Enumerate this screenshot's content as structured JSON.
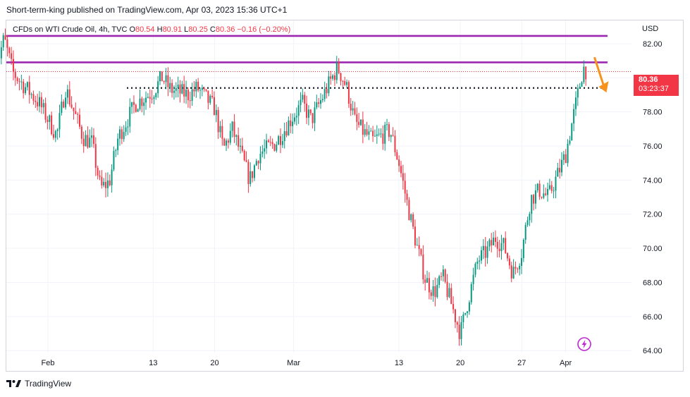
{
  "header": {
    "publish_line": "Short-term-king published on TradingView.com, Apr 03, 2023 15:36 UTC+1"
  },
  "legend": {
    "symbol": "CFDs on WTI Crude Oil, 4h, TVC",
    "o_label": "O",
    "o_value": "80.54",
    "h_label": "H",
    "h_value": "80.91",
    "l_label": "L",
    "l_value": "80.25",
    "c_label": "C",
    "c_value": "80.36",
    "change": "−0.16 (−0.20%)"
  },
  "currency": "USD",
  "price_badge": {
    "price": "80.36",
    "countdown": "03:23:37"
  },
  "brand": "TradingView",
  "colors": {
    "up": "#089981",
    "down": "#f23645",
    "resistance": "#9c27b0",
    "arrow": "#f7931a"
  },
  "chart_data": {
    "type": "candlestick",
    "title": "CFDs on WTI Crude Oil, 4h, TVC",
    "ylabel": "USD",
    "ylim": [
      63.1,
      83.4
    ],
    "yticks": [
      "64.00",
      "66.00",
      "68.00",
      "70.00",
      "72.00",
      "74.00",
      "76.00",
      "78.00",
      "80.00",
      "82.00"
    ],
    "xticks": [
      "Feb",
      "13",
      "20",
      "Mar",
      "13",
      "20",
      "27",
      "Apr"
    ],
    "last_price": 80.36,
    "horizontal_lines": [
      {
        "style": "solid",
        "color": "#9c27b0",
        "price": 82.45,
        "x_from": "Jan 26",
        "x_to": "Apr 05"
      },
      {
        "style": "solid",
        "color": "#9c27b0",
        "price": 80.9,
        "x_from": "Jan 26",
        "x_to": "Apr 05"
      },
      {
        "style": "dotted",
        "color": "#131722",
        "price": 79.4,
        "x_from": "Feb 10",
        "x_to": "Apr 05"
      }
    ],
    "annotations": [
      {
        "type": "arrow",
        "color": "#f7931a",
        "direction": "down",
        "near": "Apr 03",
        "from_price": 81.2,
        "to_price": 79.3
      }
    ],
    "series": [
      {
        "type": "candles",
        "anchors": [
          [
            "Jan 26",
            80.5
          ],
          [
            "Jan 27",
            82.3
          ],
          [
            "Jan 28",
            80.3
          ],
          [
            "Jan 31",
            78.5
          ],
          [
            "Feb 02",
            76.6
          ],
          [
            "Feb 03",
            79.4
          ],
          [
            "Feb 05",
            76.5
          ],
          [
            "Feb 06",
            76.2
          ],
          [
            "Feb 07",
            73.5
          ],
          [
            "Feb 08",
            73.9
          ],
          [
            "Feb 09",
            76.5
          ],
          [
            "Feb 11",
            78.5
          ],
          [
            "Feb 13",
            79.2
          ],
          [
            "Feb 14",
            80.0
          ],
          [
            "Feb 15",
            79.3
          ],
          [
            "Feb 17",
            79.0
          ],
          [
            "Feb 18",
            79.4
          ],
          [
            "Feb 20",
            78.2
          ],
          [
            "Feb 21",
            75.8
          ],
          [
            "Feb 22",
            77.0
          ],
          [
            "Feb 24",
            74.0
          ],
          [
            "Feb 25",
            75.5
          ],
          [
            "Feb 27",
            76.2
          ],
          [
            "Mar 01",
            77.8
          ],
          [
            "Mar 02",
            78.5
          ],
          [
            "Mar 03",
            77.5
          ],
          [
            "Mar 05",
            79.6
          ],
          [
            "Mar 06",
            80.6
          ],
          [
            "Mar 07",
            79.5
          ],
          [
            "Mar 08",
            77.4
          ],
          [
            "Mar 09",
            76.8
          ],
          [
            "Mar 10",
            76.3
          ],
          [
            "Mar 12",
            76.9
          ],
          [
            "Mar 13",
            75.0
          ],
          [
            "Mar 14",
            72.5
          ],
          [
            "Mar 15",
            70.2
          ],
          [
            "Mar 16",
            68.2
          ],
          [
            "Mar 17",
            67.4
          ],
          [
            "Mar 18",
            68.3
          ],
          [
            "Mar 19",
            66.7
          ],
          [
            "Mar 20",
            65.0
          ],
          [
            "Mar 21",
            67.2
          ],
          [
            "Mar 22",
            69.3
          ],
          [
            "Mar 23",
            69.8
          ],
          [
            "Mar 24",
            70.6
          ],
          [
            "Mar 25",
            70.1
          ],
          [
            "Mar 26",
            68.5
          ],
          [
            "Mar 27",
            69.8
          ],
          [
            "Mar 28",
            72.9
          ],
          [
            "Mar 29",
            73.4
          ],
          [
            "Mar 30",
            73.0
          ],
          [
            "Mar 31",
            74.2
          ],
          [
            "Apr 01",
            75.5
          ],
          [
            "Apr 03",
            80.6
          ],
          [
            "Apr 03b",
            80.36
          ]
        ]
      }
    ]
  }
}
